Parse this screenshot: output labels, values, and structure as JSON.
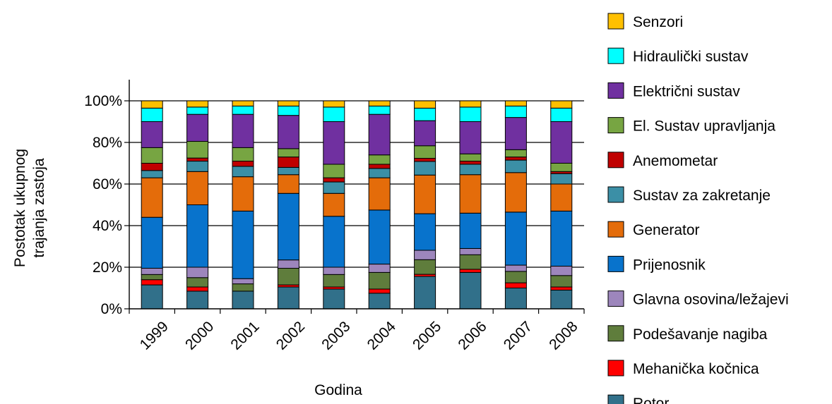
{
  "chart_data": {
    "type": "bar",
    "stacked": true,
    "normalized": true,
    "title": "",
    "xlabel": "Godina",
    "ylabel": [
      "Postotak ukupnog",
      "trajanja zastoja"
    ],
    "ylim": [
      0,
      100
    ],
    "y_ticks": [
      "0%",
      "20%",
      "40%",
      "60%",
      "80%",
      "100%"
    ],
    "grid": "horizontal",
    "legend_position": "right",
    "categories": [
      "1999",
      "2000",
      "2001",
      "2002",
      "2003",
      "2004",
      "2005",
      "2006",
      "2007",
      "2008"
    ],
    "series": [
      {
        "name": "Rotor",
        "color": "#31708a",
        "values": [
          11.5,
          8.5,
          8.5,
          10.5,
          9.5,
          7.5,
          15.5,
          17.5,
          10,
          9
        ]
      },
      {
        "name": "Mehanička kočnica",
        "color": "#ff0000",
        "values": [
          2.5,
          2,
          0,
          1,
          1,
          2,
          1,
          1.5,
          2.5,
          1.5
        ]
      },
      {
        "name": "Podešavanje nagiba",
        "color": "#5f7d3c",
        "values": [
          2.5,
          4.5,
          3.5,
          8,
          6,
          8,
          7,
          7,
          5.5,
          5.5
        ]
      },
      {
        "name": "Glavna osovina/ležajevi",
        "color": "#9d86bc",
        "values": [
          3,
          5,
          2.5,
          4,
          3.5,
          4,
          4.5,
          3,
          3,
          4.5
        ]
      },
      {
        "name": "Prijenosnik",
        "color": "#0873cc",
        "values": [
          24.5,
          30,
          32.5,
          32,
          24.5,
          26,
          17.5,
          17,
          25.5,
          26.5
        ]
      },
      {
        "name": "Generator",
        "color": "#e46c0a",
        "values": [
          19,
          16,
          16.5,
          9,
          11,
          15.5,
          18.5,
          18.5,
          19,
          13
        ]
      },
      {
        "name": "Sustav za zakretanje",
        "color": "#3b8fa6",
        "values": [
          3.5,
          5,
          5,
          3.5,
          5.5,
          4.5,
          6.5,
          5,
          6,
          5
        ]
      },
      {
        "name": "Anemometar",
        "color": "#c00000",
        "values": [
          3.5,
          1.5,
          2.5,
          5,
          2,
          2,
          1.5,
          1.5,
          1.5,
          1
        ]
      },
      {
        "name": "El. Sustav upravljanja",
        "color": "#77a542",
        "values": [
          7.5,
          8,
          6.5,
          4,
          6.5,
          4.5,
          6,
          3.5,
          3.5,
          4
        ]
      },
      {
        "name": "Električni sustav",
        "color": "#7030a0",
        "values": [
          12.5,
          13,
          16,
          16,
          20.5,
          19.5,
          12,
          15.5,
          15.5,
          20
        ]
      },
      {
        "name": "Hidraulički sustav",
        "color": "#00ffff",
        "values": [
          6.5,
          3.5,
          4,
          4.5,
          7,
          4,
          6,
          7,
          5.5,
          6.5
        ]
      },
      {
        "name": "Senzori",
        "color": "#ffc000",
        "values": [
          3.5,
          3,
          2.5,
          2.5,
          3,
          2.5,
          3.5,
          3,
          2.5,
          3.5
        ]
      }
    ]
  }
}
